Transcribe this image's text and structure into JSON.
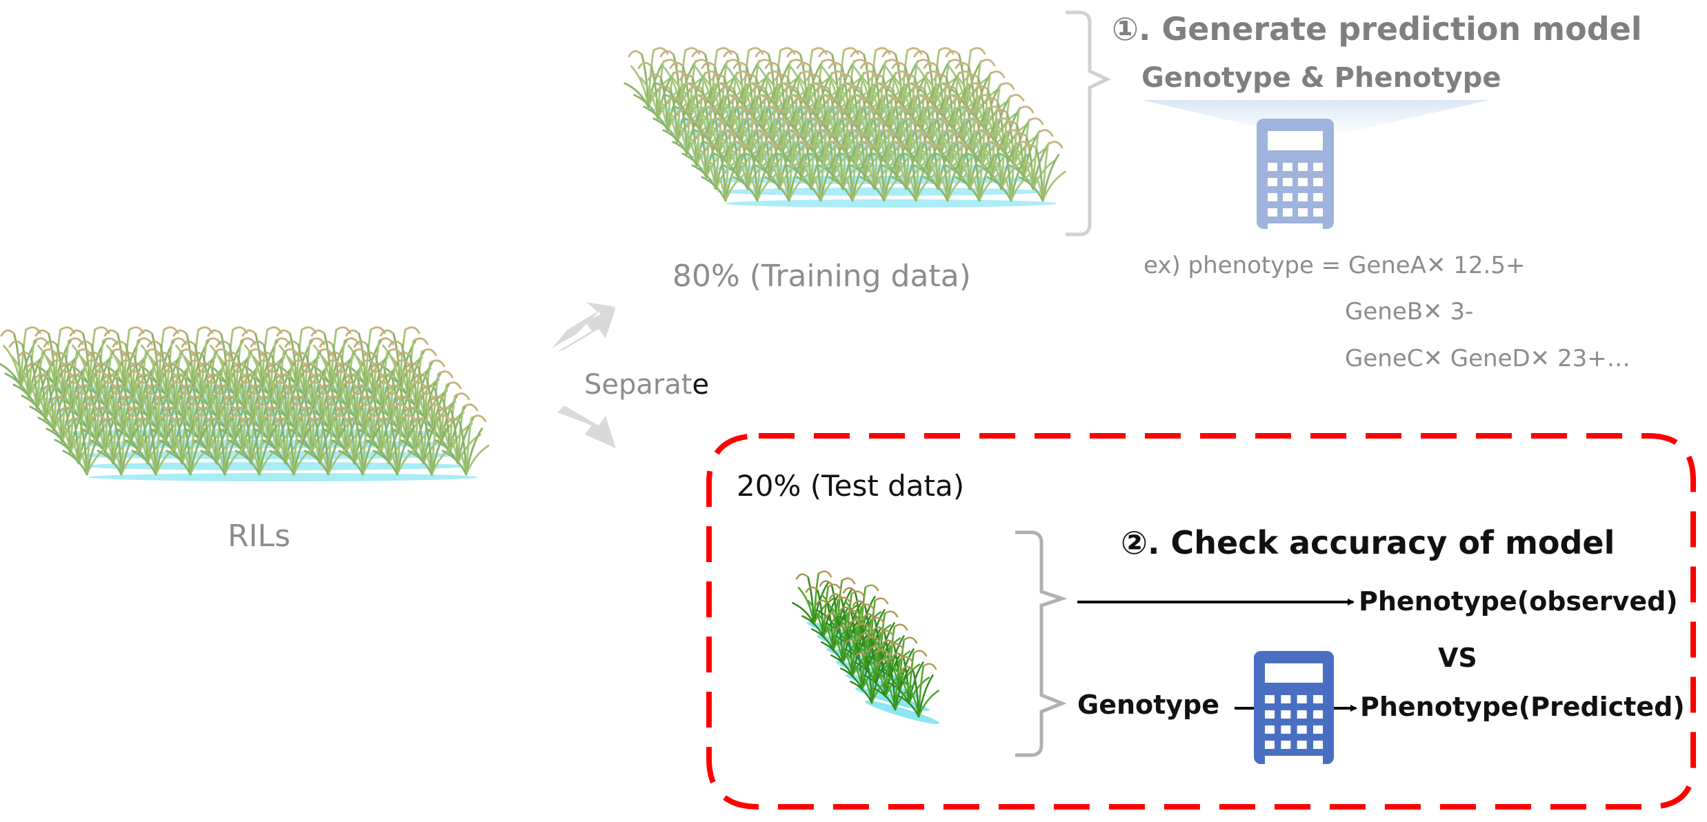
{
  "left": {
    "label": "RILs"
  },
  "split": {
    "label_main": "Separat",
    "label_tail": "e"
  },
  "training": {
    "label": "80% (Training data)",
    "step_title": "①. Generate prediction model",
    "input_label": "Genotype & Phenotype",
    "formula": {
      "line1": "ex) phenotype  = GeneA✕ 12.5+",
      "line2": "GeneB✕ 3-",
      "line3": "GeneC✕ GeneD✕ 23+…"
    }
  },
  "test": {
    "label": "20% (Test data)",
    "step_title": "②. Check accuracy of model",
    "observed_label": "Phenotype(observed)",
    "vs_label": "VS",
    "genotype_label": "Genotype",
    "predicted_label": "Phenotype(Predicted)"
  },
  "colors": {
    "plant_green": "#6f9a3a",
    "water": "#6fe0f0",
    "calculator_light": "#9fb3dc",
    "calculator_dark": "#4a6fc2",
    "dashed_border": "#ff0000",
    "arrow_gray": "#d9d9d9",
    "bracket_gray": "#bfbfbf"
  },
  "icons": [
    "rice-field-icon",
    "calculator-icon",
    "arrow-icon",
    "bracket-icon"
  ]
}
